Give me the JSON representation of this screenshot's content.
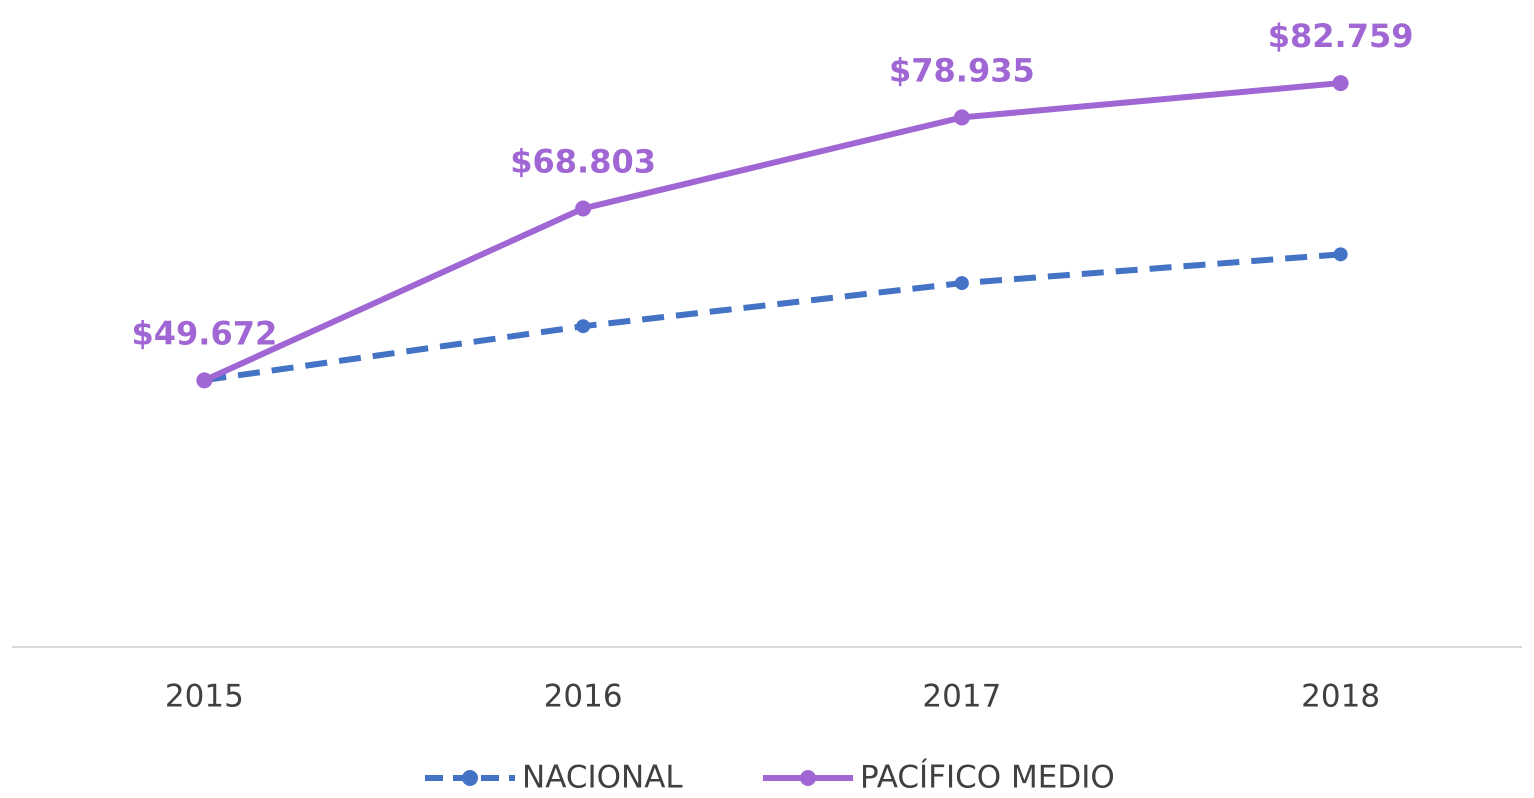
{
  "chart_data": {
    "type": "line",
    "categories": [
      "2015",
      "2016",
      "2017",
      "2018"
    ],
    "series": [
      {
        "name": "NACIONAL",
        "color": "#4472c4",
        "dashed": true,
        "values": [
          49700,
          55700,
          60500,
          63700
        ]
      },
      {
        "name": "PACÍFICO MEDIO",
        "color": "#a066d3",
        "values": [
          49672,
          68803,
          78935,
          82759
        ],
        "value_labels": [
          "$49.672",
          "$68.803",
          "$78.935",
          "$82.759"
        ]
      }
    ],
    "ylim": [
      20000,
      90000
    ],
    "legend": "bottom"
  }
}
